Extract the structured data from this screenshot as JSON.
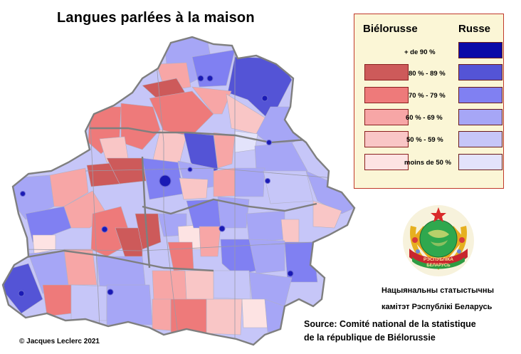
{
  "title": "Langues parlées à la maison",
  "legend": {
    "header_left": "Biélorusse",
    "header_right": "Russe",
    "rows": [
      {
        "label": "+ de 90 %",
        "belarusian_color": null,
        "russian_color": "#0a0aa8"
      },
      {
        "label": "80 % - 89 %",
        "belarusian_color": "#cd5a5a",
        "russian_color": "#5454d6"
      },
      {
        "label": "70 % - 79 %",
        "belarusian_color": "#ee7a7a",
        "russian_color": "#8080f2"
      },
      {
        "label": "60 %  - 69 %",
        "belarusian_color": "#f7a6a6",
        "russian_color": "#a6a6f6"
      },
      {
        "label": "50 % - 59 %",
        "belarusian_color": "#f9c6c6",
        "russian_color": "#c6c6f8"
      },
      {
        "label": "moins de 50 %",
        "belarusian_color": "#fde3e3",
        "russian_color": "#e3e3fb"
      }
    ]
  },
  "emblem": {
    "ribbon_text_1": "РЭСПУБЛІКА",
    "ribbon_text_2": "БЕЛАРУСЬ"
  },
  "agency": {
    "line1": "Нацыянальны статыстычны",
    "line2": "камітэт Рэспублікі Беларусь"
  },
  "source": {
    "line1": "Source: Comité national de la statistique",
    "line2": "de la république de Biélorussie"
  },
  "copyright": "© Jacques Leclerc 2021",
  "map_colors": {
    "ru90": "#0a0aa8",
    "ru80": "#5454d6",
    "ru70": "#8080f2",
    "ru60": "#a6a6f6",
    "ru50": "#c6c6f8",
    "ru40": "#e3e3fb",
    "be80": "#cd5a5a",
    "be70": "#ee7a7a",
    "be60": "#f7a6a6",
    "be50": "#f9c6c6",
    "be40": "#fde3e3",
    "border": "#7f7f7f",
    "city": "#1a1ab5"
  }
}
